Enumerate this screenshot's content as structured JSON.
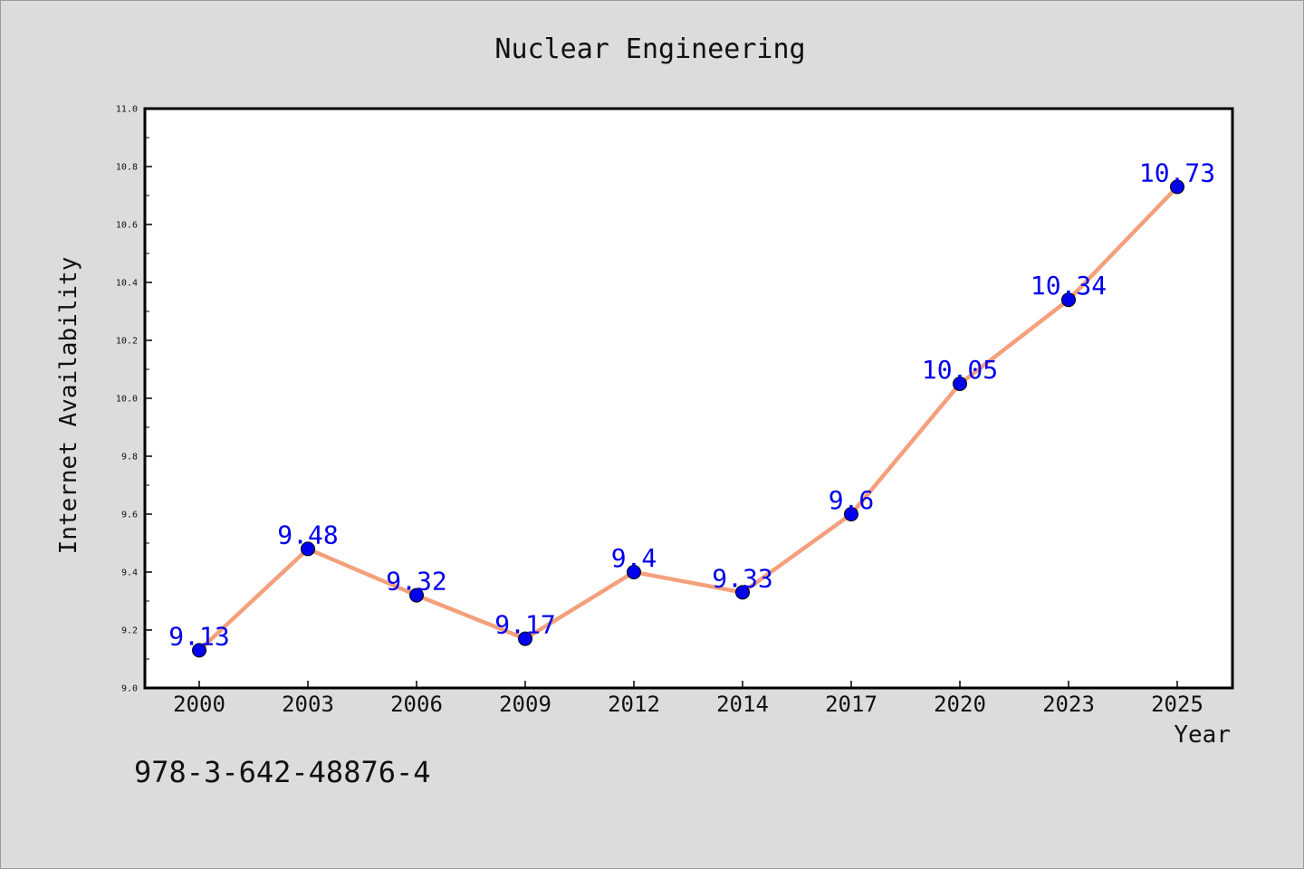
{
  "chart_data": {
    "type": "line",
    "title": "Nuclear Engineering",
    "xlabel": "Year",
    "ylabel": "Internet Availability",
    "categories": [
      "2000",
      "2003",
      "2006",
      "2009",
      "2012",
      "2014",
      "2017",
      "2020",
      "2023",
      "2025"
    ],
    "series": [
      {
        "values": [
          9.13,
          9.48,
          9.32,
          9.17,
          9.4,
          9.33,
          9.6,
          10.05,
          10.34,
          10.73
        ]
      }
    ],
    "data_labels": [
      "9.13",
      "9.48",
      "9.32",
      "9.17",
      "9.4",
      "9.33",
      "9.6",
      "10.05",
      "10.34",
      "10.73"
    ],
    "ylim": [
      9.0,
      11.0
    ],
    "y_ticks": [
      "9.0",
      "9.2",
      "9.4",
      "9.6",
      "9.8",
      "10.0",
      "10.2",
      "10.4",
      "10.6",
      "10.8",
      "11.0"
    ],
    "grid": false,
    "line_color": "#f4a07c",
    "marker_color": "#0000ee",
    "label_color": "#0000ee",
    "plot_background": "#ffffff",
    "figure_background": "#dcdcdc"
  },
  "footer_text": "978-3-642-48876-4"
}
